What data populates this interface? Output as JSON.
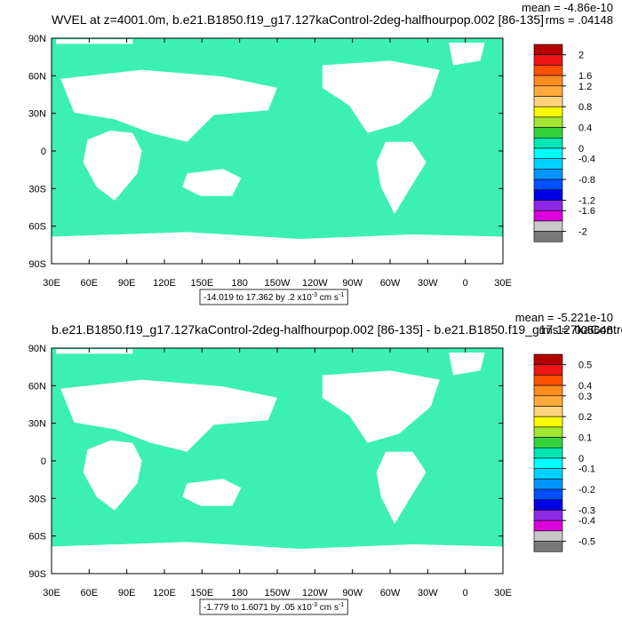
{
  "chart_data": [
    {
      "type": "heatmap",
      "title": "WVEL at z=4001.0m, b.e21.B1850.f19_g17.127kaControl-2deg-halfhourpop.002 [86-135]",
      "mean_text": "mean = -4.86e-10",
      "rms_text": "rms = .04148",
      "x_ticks": [
        "30E",
        "60E",
        "90E",
        "120E",
        "150E",
        "180",
        "150W",
        "120W",
        "90W",
        "60W",
        "30W",
        "0",
        "30E"
      ],
      "y_ticks": [
        "90N",
        "60N",
        "30N",
        "0",
        "30S",
        "60S",
        "90S"
      ],
      "colorbar_labels": [
        "2",
        "1.6",
        "1.2",
        "0.8",
        "0.4",
        "0",
        "-0.4",
        "-0.8",
        "-1.2",
        "-1.6",
        "-2"
      ],
      "range_prefix": "-14.019 to 17.362 by .2 x10",
      "range_exp": "-3",
      "range_units": " cm s",
      "range_units_exp": "-1"
    },
    {
      "type": "heatmap",
      "title": "b.e21.B1850.f19_g17.127kaControl-2deg-halfhourpop.002 [86-135] - b.e21.B1850.f19_g17.127kaControl",
      "mean_text": "mean = -5.221e-10",
      "rms_text": "rms = .005648",
      "x_ticks": [
        "30E",
        "60E",
        "90E",
        "120E",
        "150E",
        "180",
        "150W",
        "120W",
        "90W",
        "60W",
        "30W",
        "0",
        "30E"
      ],
      "y_ticks": [
        "90N",
        "60N",
        "30N",
        "0",
        "30S",
        "60S",
        "90S"
      ],
      "colorbar_labels": [
        "0.5",
        "0.4",
        "0.3",
        "0.2",
        "0.1",
        "0",
        "-0.1",
        "-0.2",
        "-0.3",
        "-0.4",
        "-0.5"
      ],
      "range_prefix": "-1.779 to 1.6071 by .05 x10",
      "range_exp": "-3",
      "range_units": " cm s",
      "range_units_exp": "-1"
    }
  ],
  "colorbar_colors": [
    "#b40000",
    "#f01414",
    "#ff5000",
    "#ff8c1e",
    "#ffaa3c",
    "#ffd27d",
    "#fafa00",
    "#a0e632",
    "#32d23c",
    "#00e6b4",
    "#00ffff",
    "#00d2ff",
    "#0096ff",
    "#0050ff",
    "#0000e6",
    "#8c28e6",
    "#dc00dc",
    "#c8c8c8",
    "#787878"
  ],
  "ocean_color": "#3cf0b4",
  "mask_color": "#ffffff"
}
